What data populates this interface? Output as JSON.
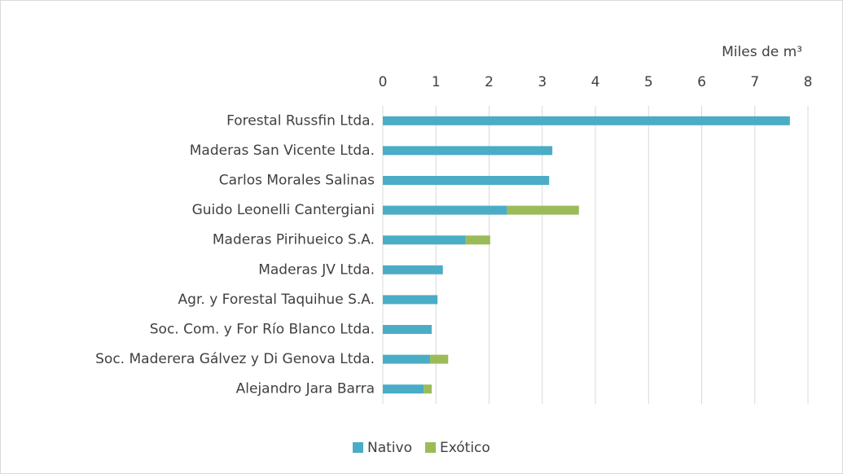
{
  "chart_data": {
    "type": "stacked_bar_horizontal",
    "axis_label": "Miles de m³",
    "categories": [
      "Forestal Russfin Ltda.",
      "Maderas San Vicente Ltda.",
      "Carlos Morales Salinas",
      "Guido Leonelli Cantergiani",
      "Maderas Pirihueico S.A.",
      "Maderas JV Ltda.",
      "Agr. y Forestal Taquihue S.A.",
      "Soc. Com. y For Río Blanco Ltda.",
      "Soc. Maderera Gálvez y Di Genova Ltda.",
      "Alejandro Jara Barra"
    ],
    "series": [
      {
        "name": "Nativo",
        "color": "#4bacc6",
        "values": [
          7.66,
          3.19,
          3.13,
          2.34,
          1.56,
          1.13,
          1.03,
          0.92,
          0.89,
          0.77
        ]
      },
      {
        "name": "Exótico",
        "color": "#9bbb59",
        "values": [
          0,
          0,
          0,
          1.35,
          0.46,
          0,
          0,
          0,
          0.34,
          0.15
        ]
      }
    ],
    "xlim": [
      0,
      8
    ],
    "xticks": [
      0,
      1,
      2,
      3,
      4,
      5,
      6,
      7,
      8
    ],
    "grid": true,
    "legend": "bottom"
  }
}
